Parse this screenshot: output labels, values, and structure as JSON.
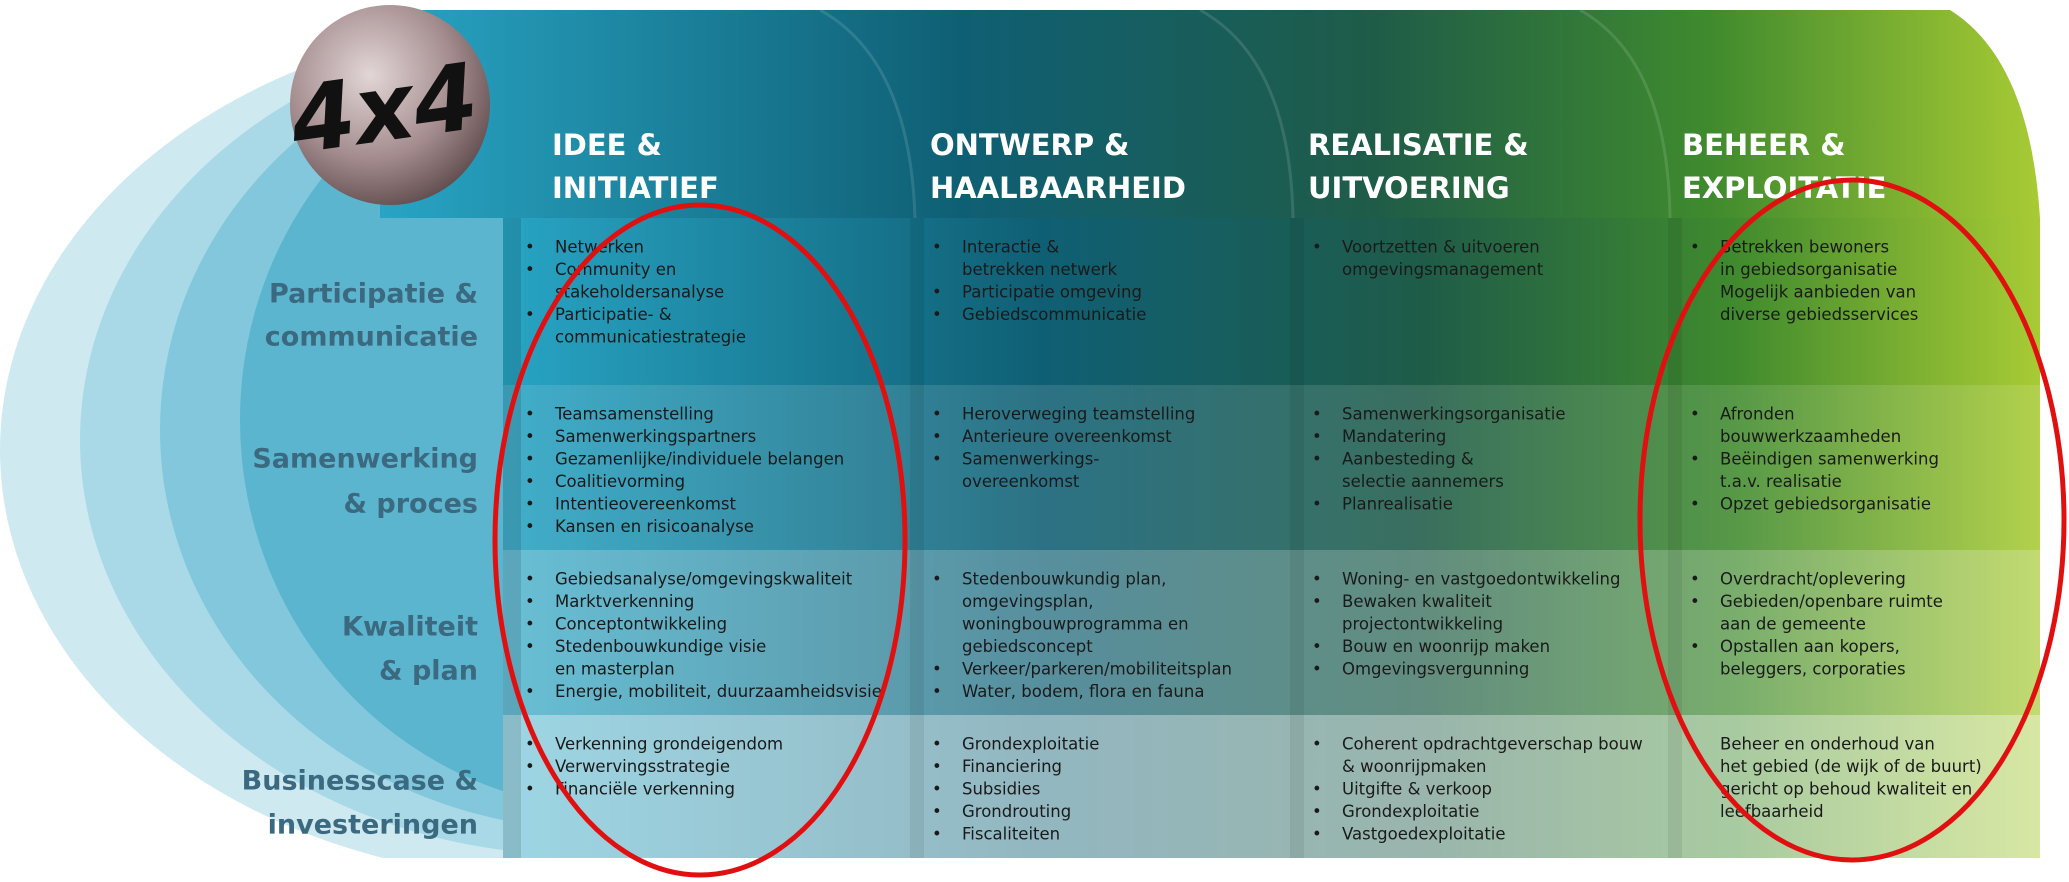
{
  "logo": "4x4",
  "columns": [
    [
      "IDEE &",
      "INITIATIEF"
    ],
    [
      "ONTWERP &",
      "HAALBAARHEID"
    ],
    [
      "REALISATIE &",
      "UITVOERING"
    ],
    [
      "BEHEER &",
      "EXPLOITATIE"
    ]
  ],
  "rows": [
    {
      "label": [
        "Participatie &",
        "communicatie"
      ],
      "cells": [
        {
          "items": [
            [
              "Netwerken"
            ],
            [
              "Community en",
              "stakeholdersanalyse"
            ],
            [
              "Participatie- &",
              "communicatiestrategie"
            ]
          ]
        },
        {
          "items": [
            [
              "Interactie &",
              "betrekken netwerk"
            ],
            [
              "Participatie omgeving"
            ],
            [
              "Gebiedscommunicatie"
            ]
          ]
        },
        {
          "items": [
            [
              "Voortzetten & uitvoeren",
              "omgevingsmanagement"
            ]
          ]
        },
        {
          "items": [
            [
              "Betrekken bewoners",
              "in gebiedsorganisatie"
            ],
            [
              "Mogelijk aanbieden van",
              "diverse gebiedsservices"
            ]
          ]
        }
      ]
    },
    {
      "label": [
        "Samenwerking",
        "& proces"
      ],
      "cells": [
        {
          "items": [
            [
              "Teamsamenstelling"
            ],
            [
              "Samenwerkingspartners"
            ],
            [
              "Gezamenlijke/individuele belangen"
            ],
            [
              "Coalitievorming"
            ],
            [
              "Intentieovereenkomst"
            ],
            [
              "Kansen en risicoanalyse"
            ]
          ]
        },
        {
          "items": [
            [
              "Heroverweging teamstelling"
            ],
            [
              "Anterieure overeenkomst"
            ],
            [
              "Samenwerkings-",
              "overeenkomst"
            ]
          ]
        },
        {
          "items": [
            [
              "Samenwerkingsorganisatie"
            ],
            [
              "Mandatering"
            ],
            [
              "Aanbesteding &",
              "selectie aannemers"
            ],
            [
              "Planrealisatie"
            ]
          ]
        },
        {
          "items": [
            [
              "Afronden",
              "bouwwerkzaamheden"
            ],
            [
              "Beëindigen samenwerking",
              "t.a.v. realisatie"
            ],
            [
              "Opzet gebiedsorganisatie"
            ]
          ]
        }
      ]
    },
    {
      "label": [
        "Kwaliteit",
        "& plan"
      ],
      "cells": [
        {
          "items": [
            [
              "Gebiedsanalyse/omgevingskwaliteit"
            ],
            [
              "Marktverkenning"
            ],
            [
              "Conceptontwikkeling"
            ],
            [
              "Stedenbouwkundige visie",
              "en masterplan"
            ],
            [
              "Energie, mobiliteit, duurzaamheidsvisie"
            ]
          ]
        },
        {
          "items": [
            [
              "Stedenbouwkundig plan,",
              "omgevingsplan,",
              "woningbouwprogramma en",
              "gebiedsconcept"
            ],
            [
              "Verkeer/parkeren/mobiliteitsplan"
            ],
            [
              "Water, bodem, flora en fauna"
            ]
          ]
        },
        {
          "items": [
            [
              "Woning- en vastgoedontwikkeling"
            ],
            [
              "Bewaken kwaliteit",
              "projectontwikkeling"
            ],
            [
              "Bouw en woonrijp maken"
            ],
            [
              "Omgevingsvergunning"
            ]
          ]
        },
        {
          "items": [
            [
              "Overdracht/oplevering"
            ],
            [
              "Gebieden/openbare ruimte",
              "aan de  gemeente"
            ],
            [
              "Opstallen aan kopers,",
              "beleggers, corporaties"
            ]
          ]
        }
      ]
    },
    {
      "label": [
        "Businesscase &",
        "investeringen"
      ],
      "cells": [
        {
          "items": [
            [
              "Verkenning grondeigendom"
            ],
            [
              "Verwervingsstrategie"
            ],
            [
              "Financiële verkenning"
            ]
          ]
        },
        {
          "items": [
            [
              "Grondexploitatie"
            ],
            [
              "Financiering"
            ],
            [
              "Subsidies"
            ],
            [
              "Grondrouting"
            ],
            [
              "Fiscaliteiten"
            ]
          ]
        },
        {
          "items": [
            [
              "Coherent opdrachtgeverschap bouw",
              "& woonrijpmaken"
            ],
            [
              "Uitgifte & verkoop"
            ],
            [
              "Grondexploitatie"
            ],
            [
              "Vastgoedexploitatie"
            ]
          ]
        },
        {
          "text": [
            "Beheer en onderhoud van",
            "het gebied (de wijk of de buurt)",
            "gericht op behoud kwaliteit en",
            "leefbaarheid"
          ]
        }
      ]
    }
  ]
}
